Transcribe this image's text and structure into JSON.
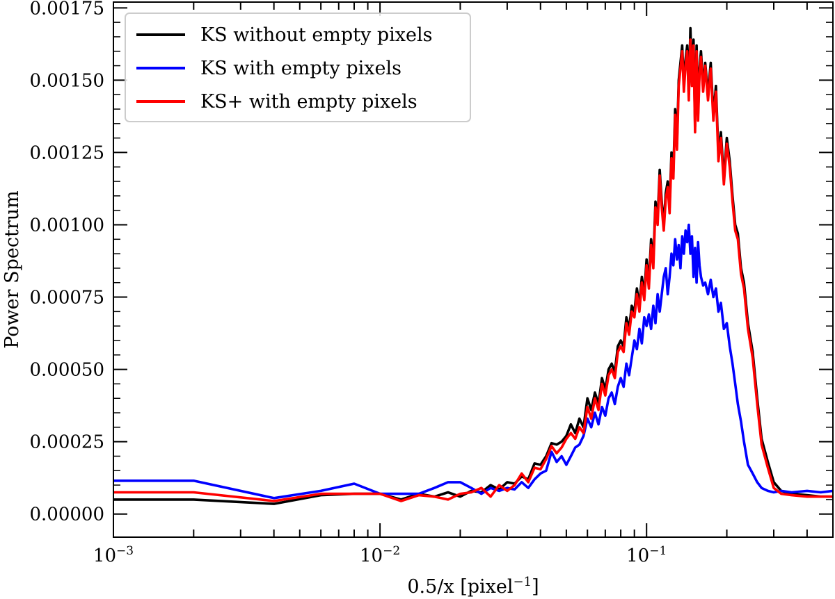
{
  "chart_data": {
    "type": "line",
    "title": "",
    "xlabel_text": "0.5/x [pixel",
    "xlabel_sup": "−1",
    "xlabel_end": "]",
    "ylabel": "Power Spectrum",
    "xscale": "log",
    "xlim": [
      0.001,
      0.5
    ],
    "ylim": [
      -8e-05,
      0.00177
    ],
    "x_ticks": [
      {
        "base": "10",
        "exp": "−3"
      },
      {
        "base": "10",
        "exp": "−2"
      },
      {
        "base": "10",
        "exp": "−1"
      }
    ],
    "y_ticks": [
      "0.00000",
      "0.00025",
      "0.00050",
      "0.00075",
      "0.00100",
      "0.00125",
      "0.00150",
      "0.00175"
    ],
    "legend_position": "top-left",
    "series": [
      {
        "name": "KS without empty pixels",
        "color": "#000000",
        "x": [
          0.001,
          0.002,
          0.004,
          0.006,
          0.008,
          0.01,
          0.012,
          0.014,
          0.016,
          0.018,
          0.02,
          0.022,
          0.024,
          0.026,
          0.028,
          0.03,
          0.032,
          0.034,
          0.036,
          0.038,
          0.04,
          0.042,
          0.044,
          0.046,
          0.048,
          0.05,
          0.052,
          0.054,
          0.056,
          0.058,
          0.06,
          0.062,
          0.064,
          0.066,
          0.068,
          0.07,
          0.072,
          0.074,
          0.076,
          0.078,
          0.08,
          0.082,
          0.084,
          0.086,
          0.088,
          0.09,
          0.092,
          0.094,
          0.096,
          0.098,
          0.1,
          0.102,
          0.104,
          0.106,
          0.108,
          0.11,
          0.112,
          0.114,
          0.116,
          0.118,
          0.12,
          0.122,
          0.124,
          0.126,
          0.128,
          0.13,
          0.132,
          0.134,
          0.136,
          0.138,
          0.14,
          0.142,
          0.144,
          0.146,
          0.148,
          0.15,
          0.152,
          0.154,
          0.156,
          0.158,
          0.16,
          0.163,
          0.166,
          0.17,
          0.174,
          0.178,
          0.182,
          0.186,
          0.19,
          0.195,
          0.2,
          0.205,
          0.21,
          0.215,
          0.22,
          0.226,
          0.232,
          0.24,
          0.25,
          0.26,
          0.27,
          0.285,
          0.3,
          0.32,
          0.35,
          0.4,
          0.45,
          0.5
        ],
        "values": [
          5e-05,
          5e-05,
          3.5e-05,
          6.5e-05,
          7e-05,
          7e-05,
          5e-05,
          7e-05,
          6e-05,
          7.5e-05,
          6e-05,
          8e-05,
          7.5e-05,
          0.0001,
          8.5e-05,
          0.00011,
          0.000105,
          0.00013,
          0.00012,
          0.000175,
          0.00017,
          0.0002,
          0.000245,
          0.00024,
          0.00025,
          0.00027,
          0.00031,
          0.00028,
          0.00033,
          0.0003,
          0.0004,
          0.00036,
          0.00042,
          0.00038,
          0.00047,
          0.00043,
          0.0005,
          0.00052,
          0.00049,
          0.00058,
          0.0006,
          0.00058,
          0.00068,
          0.00064,
          0.00072,
          0.0007,
          0.00078,
          0.00072,
          0.00082,
          0.00076,
          0.00088,
          0.0008,
          0.00095,
          0.00087,
          0.00108,
          0.00102,
          0.00119,
          0.00108,
          0.001,
          0.00111,
          0.00115,
          0.00106,
          0.00125,
          0.00118,
          0.0014,
          0.00128,
          0.0015,
          0.00156,
          0.00162,
          0.00148,
          0.00157,
          0.00162,
          0.00145,
          0.00168,
          0.0015,
          0.00164,
          0.00134,
          0.00162,
          0.00138,
          0.00154,
          0.0016,
          0.00148,
          0.00156,
          0.00145,
          0.00156,
          0.00138,
          0.00148,
          0.00124,
          0.00132,
          0.00116,
          0.0013,
          0.00122,
          0.0011,
          0.001,
          0.00097,
          0.00085,
          0.0008,
          0.00066,
          0.00056,
          0.0004,
          0.00026,
          0.00018,
          0.00011,
          8e-05,
          7e-05,
          6.5e-05,
          6e-05,
          6e-05
        ]
      },
      {
        "name": "KS with empty pixels",
        "color": "#0000ff",
        "x": [
          0.001,
          0.002,
          0.004,
          0.006,
          0.008,
          0.01,
          0.012,
          0.014,
          0.016,
          0.018,
          0.02,
          0.022,
          0.024,
          0.026,
          0.028,
          0.03,
          0.032,
          0.034,
          0.036,
          0.038,
          0.04,
          0.042,
          0.044,
          0.046,
          0.048,
          0.05,
          0.052,
          0.054,
          0.056,
          0.058,
          0.06,
          0.062,
          0.064,
          0.066,
          0.068,
          0.07,
          0.072,
          0.074,
          0.076,
          0.078,
          0.08,
          0.082,
          0.084,
          0.086,
          0.088,
          0.09,
          0.092,
          0.094,
          0.096,
          0.098,
          0.1,
          0.102,
          0.104,
          0.106,
          0.108,
          0.11,
          0.112,
          0.114,
          0.116,
          0.118,
          0.12,
          0.122,
          0.124,
          0.126,
          0.128,
          0.13,
          0.132,
          0.134,
          0.136,
          0.138,
          0.14,
          0.142,
          0.144,
          0.146,
          0.148,
          0.15,
          0.152,
          0.154,
          0.156,
          0.158,
          0.16,
          0.163,
          0.166,
          0.17,
          0.174,
          0.178,
          0.182,
          0.186,
          0.19,
          0.195,
          0.2,
          0.205,
          0.21,
          0.215,
          0.22,
          0.226,
          0.232,
          0.24,
          0.25,
          0.26,
          0.27,
          0.285,
          0.3,
          0.32,
          0.35,
          0.4,
          0.45,
          0.5
        ],
        "values": [
          0.000115,
          0.000115,
          5.5e-05,
          8e-05,
          0.000105,
          7e-05,
          7e-05,
          7e-05,
          9e-05,
          0.00011,
          0.00011,
          9e-05,
          7e-05,
          9e-05,
          8e-05,
          9e-05,
          8.5e-05,
          0.00011,
          9e-05,
          0.00012,
          0.00014,
          0.00015,
          0.000215,
          0.00018,
          0.0002,
          0.00017,
          0.0002,
          0.00023,
          0.00024,
          0.00027,
          0.00033,
          0.0003,
          0.00035,
          0.00031,
          0.00037,
          0.00034,
          0.0004,
          0.00042,
          0.00038,
          0.00044,
          0.00047,
          0.00044,
          0.00052,
          0.00048,
          0.00054,
          0.0006,
          0.00057,
          0.00064,
          0.00059,
          0.00068,
          0.00065,
          0.00069,
          0.00064,
          0.00072,
          0.00066,
          0.00076,
          0.0007,
          0.00076,
          0.00082,
          0.00085,
          0.00076,
          0.00082,
          0.0009,
          0.00086,
          0.00095,
          0.00088,
          0.00093,
          0.00085,
          0.00096,
          0.0009,
          0.00098,
          0.00094,
          0.001,
          0.0009,
          0.00096,
          0.00082,
          0.00092,
          0.0008,
          0.00094,
          0.00086,
          0.00082,
          0.00079,
          0.0008,
          0.00076,
          0.00081,
          0.00075,
          0.00078,
          0.0007,
          0.00073,
          0.00064,
          0.00066,
          0.00058,
          0.00052,
          0.00045,
          0.00038,
          0.00032,
          0.00025,
          0.00017,
          0.00014,
          0.00011,
          9e-05,
          8e-05,
          7.5e-05,
          8e-05,
          7.5e-05,
          8e-05,
          7.5e-05,
          8e-05
        ]
      },
      {
        "name": "KS+ with empty pixels",
        "color": "#ff0000",
        "x": [
          0.001,
          0.002,
          0.004,
          0.006,
          0.008,
          0.01,
          0.012,
          0.014,
          0.016,
          0.018,
          0.02,
          0.022,
          0.024,
          0.026,
          0.028,
          0.03,
          0.032,
          0.034,
          0.036,
          0.038,
          0.04,
          0.042,
          0.044,
          0.046,
          0.048,
          0.05,
          0.052,
          0.054,
          0.056,
          0.058,
          0.06,
          0.062,
          0.064,
          0.066,
          0.068,
          0.07,
          0.072,
          0.074,
          0.076,
          0.078,
          0.08,
          0.082,
          0.084,
          0.086,
          0.088,
          0.09,
          0.092,
          0.094,
          0.096,
          0.098,
          0.1,
          0.102,
          0.104,
          0.106,
          0.108,
          0.11,
          0.112,
          0.114,
          0.116,
          0.118,
          0.12,
          0.122,
          0.124,
          0.126,
          0.128,
          0.13,
          0.132,
          0.134,
          0.136,
          0.138,
          0.14,
          0.142,
          0.144,
          0.146,
          0.148,
          0.15,
          0.152,
          0.154,
          0.156,
          0.158,
          0.16,
          0.163,
          0.166,
          0.17,
          0.174,
          0.178,
          0.182,
          0.186,
          0.19,
          0.195,
          0.2,
          0.205,
          0.21,
          0.215,
          0.22,
          0.226,
          0.232,
          0.24,
          0.25,
          0.26,
          0.27,
          0.285,
          0.3,
          0.32,
          0.35,
          0.4,
          0.45,
          0.5
        ],
        "values": [
          7.5e-05,
          7.5e-05,
          4.5e-05,
          7e-05,
          7e-05,
          7e-05,
          4.5e-05,
          6.5e-05,
          6e-05,
          5e-05,
          7e-05,
          7.5e-05,
          9e-05,
          6e-05,
          0.0001,
          8e-05,
          0.0001,
          0.00014,
          0.00011,
          0.00016,
          0.000155,
          0.00019,
          0.000235,
          0.00021,
          0.00023,
          0.00026,
          0.00028,
          0.00026,
          0.0003,
          0.00028,
          0.00037,
          0.00033,
          0.0004,
          0.00036,
          0.00045,
          0.00041,
          0.00048,
          0.0005,
          0.00047,
          0.00056,
          0.00058,
          0.00056,
          0.00066,
          0.00062,
          0.0007,
          0.00068,
          0.00076,
          0.0007,
          0.0008,
          0.00074,
          0.00086,
          0.00078,
          0.00093,
          0.00085,
          0.00106,
          0.001,
          0.00117,
          0.00106,
          0.00098,
          0.00109,
          0.00113,
          0.00104,
          0.00123,
          0.00116,
          0.00138,
          0.00126,
          0.00148,
          0.00154,
          0.0016,
          0.00146,
          0.00155,
          0.0016,
          0.00143,
          0.00164,
          0.00148,
          0.00162,
          0.00132,
          0.0016,
          0.00136,
          0.00152,
          0.00158,
          0.00146,
          0.00155,
          0.00143,
          0.00154,
          0.00136,
          0.00146,
          0.00122,
          0.0013,
          0.00114,
          0.00128,
          0.0012,
          0.00108,
          0.00098,
          0.00095,
          0.00083,
          0.00078,
          0.00064,
          0.00054,
          0.00038,
          0.00024,
          0.00016,
          9e-05,
          7e-05,
          6.5e-05,
          6e-05,
          6e-05,
          6e-05
        ]
      }
    ]
  }
}
